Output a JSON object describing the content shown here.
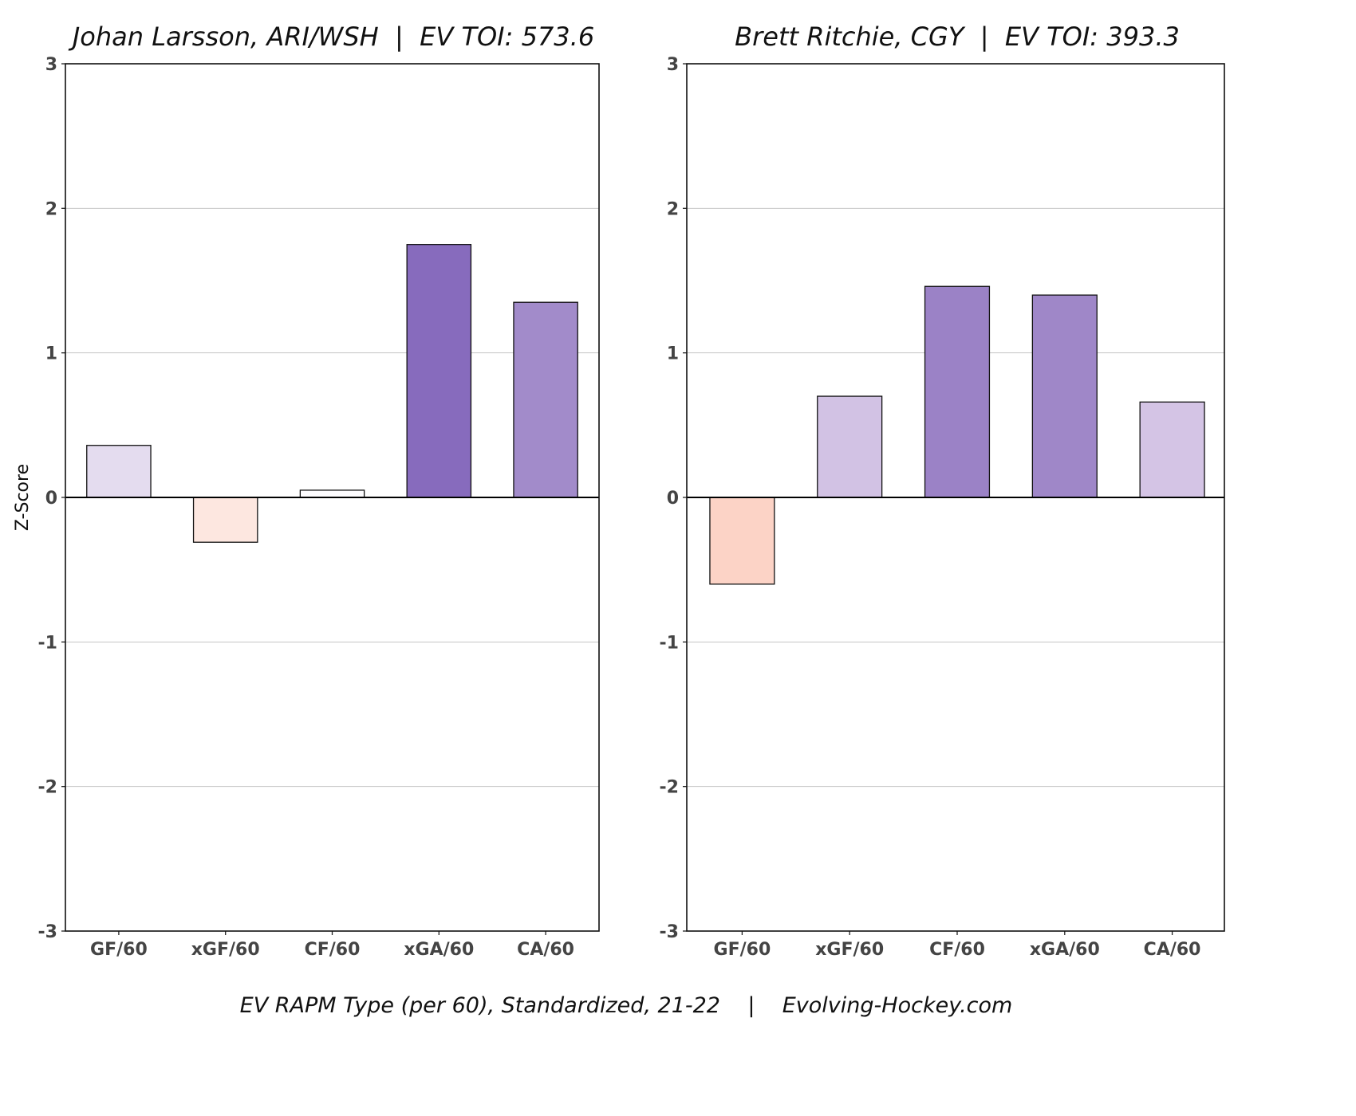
{
  "chart_data": [
    {
      "type": "bar",
      "title": "Johan Larsson, ARI/WSH  |  EV TOI: 573.6",
      "ylabel": "Z-Score",
      "ylim": [
        -3,
        3
      ],
      "yticks": [
        "3",
        "2",
        "1",
        "0",
        "-1",
        "-2",
        "-3"
      ],
      "grid": true,
      "categories": [
        "GF/60",
        "xGF/60",
        "CF/60",
        "xGA/60",
        "CA/60"
      ],
      "values": [
        0.36,
        -0.31,
        0.05,
        1.75,
        1.35
      ],
      "colors": [
        "#e4dcef",
        "#fde7e0",
        "#fdfcfe",
        "#876bbd",
        "#a28bca"
      ]
    },
    {
      "type": "bar",
      "title": "Brett Ritchie, CGY  |  EV TOI: 393.3",
      "ylim": [
        -3,
        3
      ],
      "yticks": [
        "3",
        "2",
        "1",
        "0",
        "-1",
        "-2",
        "-3"
      ],
      "grid": true,
      "categories": [
        "GF/60",
        "xGF/60",
        "CF/60",
        "xGA/60",
        "CA/60"
      ],
      "values": [
        -0.6,
        0.7,
        1.46,
        1.4,
        0.66
      ],
      "colors": [
        "#fcd3c6",
        "#d2c2e4",
        "#9b82c6",
        "#9f87c8",
        "#d4c4e5"
      ]
    }
  ],
  "footer": "EV RAPM Type (per 60), Standardized, 21-22    |    Evolving-Hockey.com"
}
